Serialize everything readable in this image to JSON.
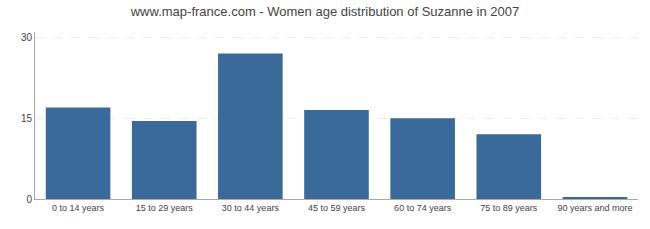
{
  "chart_data": {
    "type": "bar",
    "title": "www.map-france.com - Women age distribution of Suzanne in 2007",
    "categories": [
      "0 to 14 years",
      "15 to 29 years",
      "30 to 44 years",
      "45 to 59 years",
      "60 to 74 years",
      "75 to 89 years",
      "90 years and more"
    ],
    "values": [
      17.0,
      14.5,
      27.0,
      16.5,
      15.0,
      12.0,
      0.3
    ],
    "color": "#3A6A9A",
    "ylim": [
      0,
      31
    ],
    "yticks": [
      0,
      15,
      30
    ],
    "grid": true
  }
}
